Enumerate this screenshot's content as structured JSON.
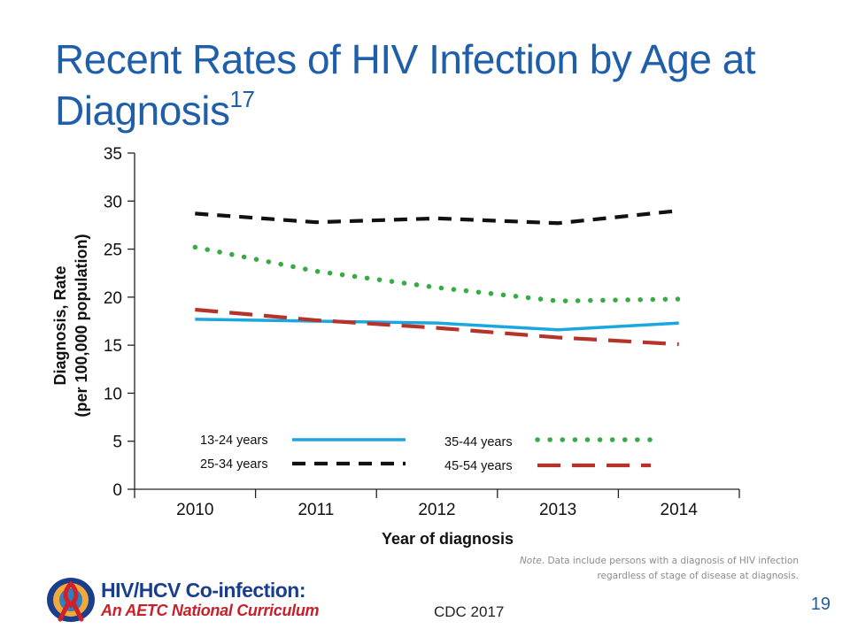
{
  "slide": {
    "title": "Recent Rates of HIV Infection by Age at Diagnosis",
    "title_superscript": "17",
    "note_label": "Note",
    "note_text": ". Data include persons with a diagnosis of HIV infection regardless of stage of  disease at diagnosis.",
    "source": "CDC 2017",
    "page_number": "19"
  },
  "logo": {
    "line1": "HIV/HCV Co-infection:",
    "line2": "An AETC National Curriculum"
  },
  "colors": {
    "title": "#1f5ea8",
    "series_13_24": "#1aa7e0",
    "series_25_34": "#111111",
    "series_35_44": "#3aaa46",
    "series_45_54": "#b5332b"
  },
  "chart_data": {
    "type": "line",
    "title": "",
    "xlabel": "Year of diagnosis",
    "ylabel": "Diagnosis, Rate",
    "ylabel_line2": "(per 100,000 population)",
    "categories": [
      "2010",
      "2011",
      "2012",
      "2013",
      "2014"
    ],
    "ylim": [
      0,
      35
    ],
    "yticks": [
      0,
      5,
      10,
      15,
      20,
      25,
      30,
      35
    ],
    "grid": false,
    "legend_position": "bottom-inside",
    "series": [
      {
        "name": "13-24 years",
        "values": [
          17.7,
          17.5,
          17.3,
          16.6,
          17.3
        ],
        "style": "solid",
        "color": "#1aa7e0"
      },
      {
        "name": "25-34 years",
        "values": [
          28.7,
          27.8,
          28.2,
          27.7,
          29.0
        ],
        "style": "dashed",
        "color": "#111111"
      },
      {
        "name": "35-44 years",
        "values": [
          25.2,
          22.7,
          21.0,
          19.6,
          19.8
        ],
        "style": "dotted",
        "color": "#3aaa46"
      },
      {
        "name": "45-54 years",
        "values": [
          18.7,
          17.6,
          16.8,
          15.8,
          15.1
        ],
        "style": "longdash",
        "color": "#b5332b"
      }
    ]
  }
}
